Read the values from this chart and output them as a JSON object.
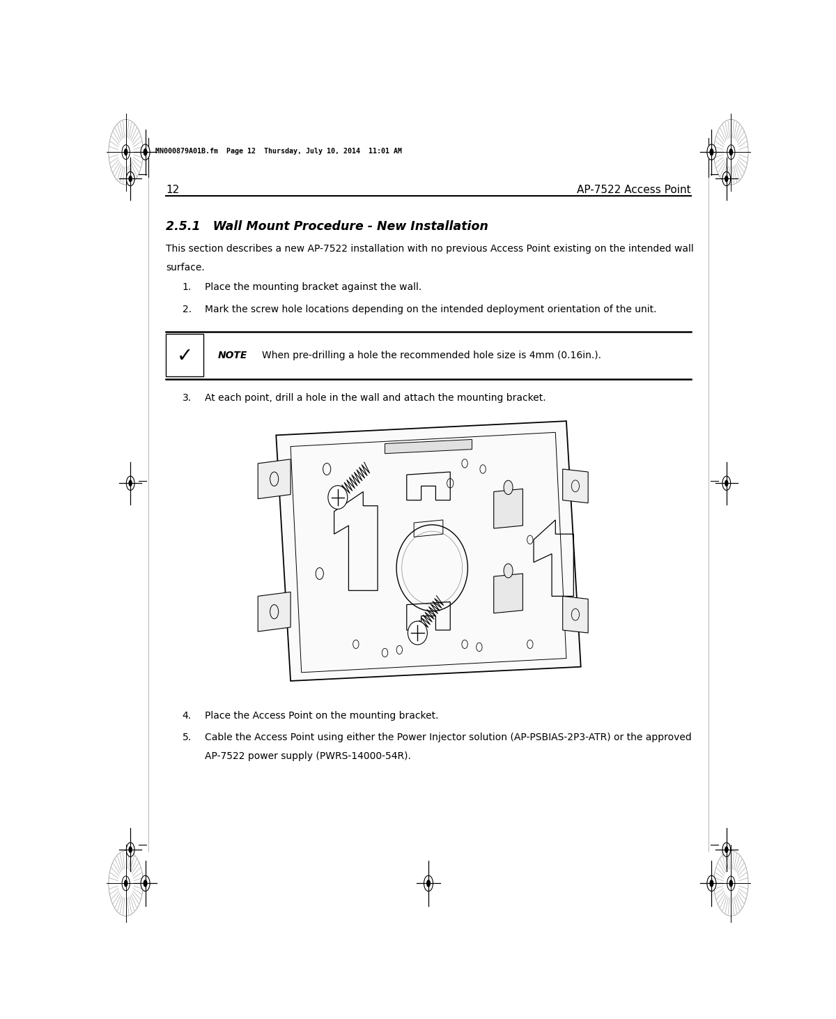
{
  "page_num": "12",
  "page_title_right": "AP-7522 Access Point",
  "header_meta": "MN000879A01B.fm  Page 12  Thursday, July 10, 2014  11:01 AM",
  "section_title": "2.5.1   Wall Mount Procedure - New Installation",
  "intro_line1": "This section describes a new AP-7522 installation with no previous Access Point existing on the intended wall",
  "intro_line2": "surface.",
  "step1": "Place the mounting bracket against the wall.",
  "step2": "Mark the screw hole locations depending on the intended deployment orientation of the unit.",
  "step3": "At each point, drill a hole in the wall and attach the mounting bracket.",
  "step4": "Place the Access Point on the mounting bracket.",
  "step5_line1": "Cable the Access Point using either the Power Injector solution (AP-PSBIAS-2P3-ATR) or the approved",
  "step5_line2": "AP-7522 power supply (PWRS-14000-54R).",
  "note_label": "NOTE",
  "note_text": "When pre-drilling a hole the recommended hole size is 4mm (0.16in.).",
  "bg_color": "#ffffff",
  "text_color": "#000000",
  "cl": 0.095,
  "cr": 0.905
}
